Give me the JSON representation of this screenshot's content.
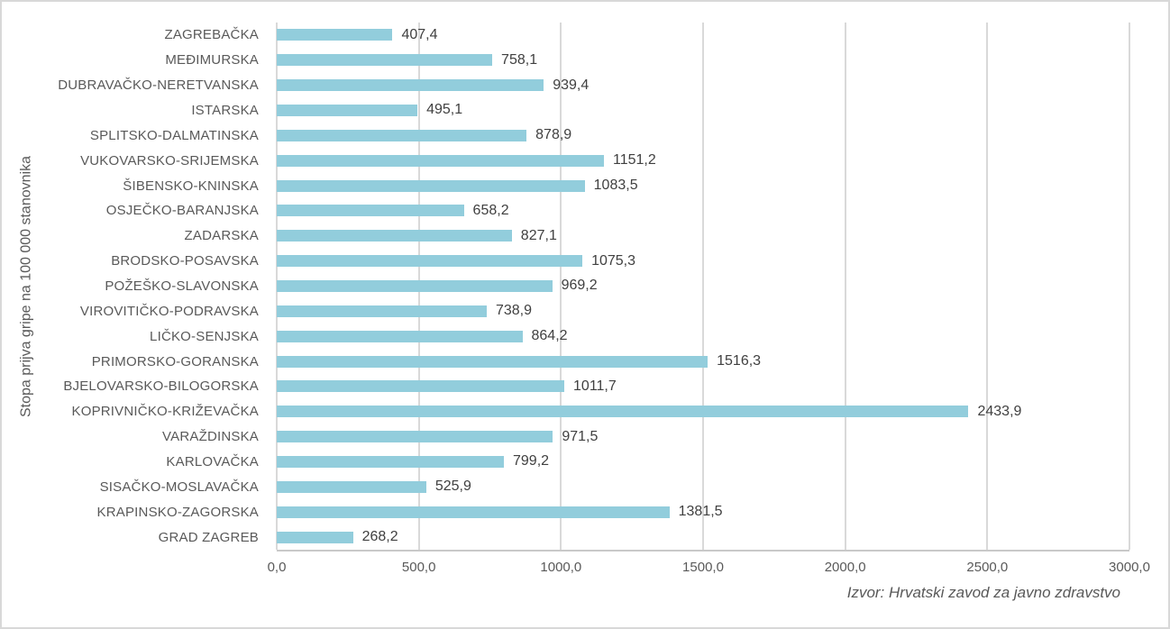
{
  "chart_data": {
    "type": "bar",
    "orientation": "horizontal",
    "title": "",
    "xlabel": "",
    "ylabel": "Stopa prijva gripe na 100 000 stanovnika",
    "xlim": [
      0,
      3000
    ],
    "grid": "vertical",
    "legend": "none",
    "x_ticks": [
      "0,0",
      "500,0",
      "1000,0",
      "1500,0",
      "2000,0",
      "2500,0",
      "3000,0"
    ],
    "x_tick_values": [
      0,
      500,
      1000,
      1500,
      2000,
      2500,
      3000
    ],
    "categories": [
      "ZAGREBAČKA",
      "MEĐIMURSKA",
      "DUBRAVAČKO-NERETVANSKA",
      "ISTARSKA",
      "SPLITSKO-DALMATINSKA",
      "VUKOVARSKO-SRIJEMSKA",
      "ŠIBENSKO-KNINSKA",
      "OSJEČKO-BARANJSKA",
      "ZADARSKA",
      "BRODSKO-POSAVSKA",
      "POŽEŠKO-SLAVONSKA",
      "VIROVITIČKO-PODRAVSKA",
      "LIČKO-SENJSKA",
      "PRIMORSKO-GORANSKA",
      "BJELOVARSKO-BILOGORSKA",
      "KOPRIVNIČKO-KRIŽEVAČKA",
      "VARAŽDINSKA",
      "KARLOVAČKA",
      "SISAČKO-MOSLAVAČKA",
      "KRAPINSKO-ZAGORSKA",
      "GRAD ZAGREB"
    ],
    "values": [
      407.4,
      758.1,
      939.4,
      495.1,
      878.9,
      1151.2,
      1083.5,
      658.2,
      827.1,
      1075.3,
      969.2,
      738.9,
      864.2,
      1516.3,
      1011.7,
      2433.9,
      971.5,
      799.2,
      525.9,
      1381.5,
      268.2
    ],
    "value_labels": [
      "407,4",
      "758,1",
      "939,4",
      "495,1",
      "878,9",
      "1151,2",
      "1083,5",
      "658,2",
      "827,1",
      "1075,3",
      "969,2",
      "738,9",
      "864,2",
      "1516,3",
      "1011,7",
      "2433,9",
      "971,5",
      "799,2",
      "525,9",
      "1381,5",
      "268,2"
    ],
    "source": "Izvor: Hrvatski zavod za javno zdravstvo",
    "bar_color": "#92CDDC",
    "grid_color": "#D9D9D9",
    "axis_line_color": "#C9C9C9",
    "category_label_color": "#595959",
    "value_label_color": "#404040",
    "source_color": "#595959"
  }
}
